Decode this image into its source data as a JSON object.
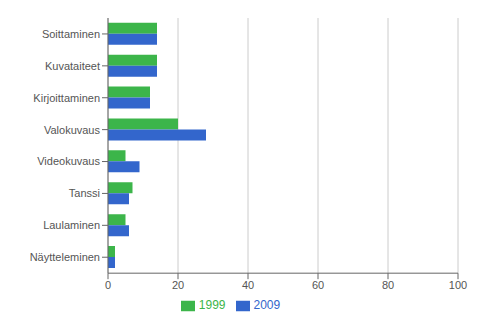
{
  "chart_data": {
    "type": "bar",
    "orientation": "horizontal",
    "categories": [
      "Soittaminen",
      "Kuvataiteet",
      "Kirjoittaminen",
      "Valokuvaus",
      "Videokuvaus",
      "Tanssi",
      "Laulaminen",
      "Näytteleminen"
    ],
    "series": [
      {
        "name": "1999",
        "color": "#3cb54a",
        "values": [
          14,
          14,
          12,
          20,
          5,
          7,
          5,
          2
        ]
      },
      {
        "name": "2009",
        "color": "#3366cc",
        "values": [
          14,
          14,
          12,
          28,
          9,
          6,
          6,
          2
        ]
      }
    ],
    "xlim": [
      0,
      100
    ],
    "xticks": [
      0,
      20,
      40,
      60,
      80,
      100
    ],
    "grid": true,
    "legend": "bottom"
  }
}
